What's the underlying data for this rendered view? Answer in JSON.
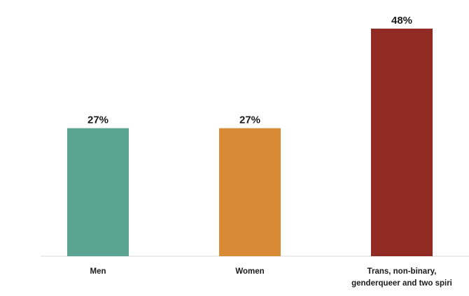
{
  "chart_data": {
    "type": "bar",
    "categories": [
      [
        "Men"
      ],
      [
        "Women"
      ],
      [
        "Trans, non-binary,",
        "genderqueer and two spiri"
      ]
    ],
    "values": [
      27,
      27,
      48
    ],
    "value_labels": [
      "27%",
      "27%",
      "48%"
    ],
    "colors": [
      "#5ba392",
      "#d98a35",
      "#922a24"
    ],
    "title": "",
    "xlabel": "",
    "ylabel": "",
    "ylim": [
      0,
      48
    ],
    "grid": false,
    "legend": "none"
  }
}
